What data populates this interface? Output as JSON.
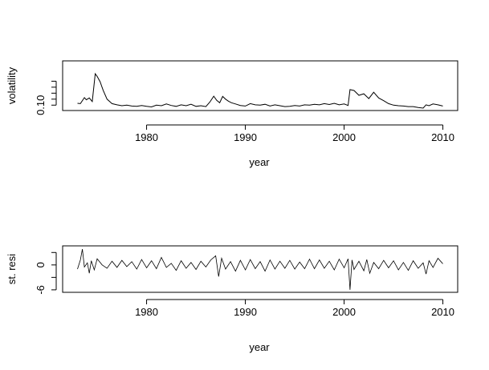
{
  "chart_data": [
    {
      "type": "line",
      "title": "",
      "xlabel": "year",
      "ylabel": "volatility",
      "xlim": [
        1971.5,
        2011.5
      ],
      "ylim": [
        0.082,
        0.248
      ],
      "x_ticks": [
        1980,
        1990,
        2000,
        2010
      ],
      "y_ticks": [
        0.1,
        0.12,
        0.14,
        0.16,
        0.18
      ],
      "y_tick_labels": [
        "0.10",
        "",
        "",
        "",
        ""
      ],
      "grid": false,
      "legend": "none",
      "line_color": "#000000",
      "series": [
        {
          "x": [
            1973.0,
            1973.3,
            1973.7,
            1973.9,
            1974.2,
            1974.5,
            1974.8,
            1975.0,
            1975.3,
            1975.6,
            1976.0,
            1976.5,
            1977.0,
            1977.5,
            1978.0,
            1978.5,
            1979.0,
            1979.5,
            1980.0,
            1980.5,
            1981.0,
            1981.5,
            1982.0,
            1982.5,
            1983.0,
            1983.5,
            1984.0,
            1984.5,
            1985.0,
            1985.5,
            1986.0,
            1986.4,
            1986.8,
            1987.1,
            1987.4,
            1987.7,
            1988.0,
            1988.3,
            1988.6,
            1989.0,
            1989.5,
            1990.0,
            1990.5,
            1991.0,
            1991.5,
            1992.0,
            1992.5,
            1993.0,
            1993.5,
            1994.0,
            1994.5,
            1995.0,
            1995.5,
            1996.0,
            1996.5,
            1997.0,
            1997.5,
            1998.0,
            1998.5,
            1999.0,
            1999.5,
            2000.0,
            2000.4,
            2000.6,
            2001.0,
            2001.5,
            2002.0,
            2002.5,
            2003.0,
            2003.5,
            2004.0,
            2004.5,
            2005.0,
            2005.5,
            2006.0,
            2006.5,
            2007.0,
            2007.5,
            2008.0,
            2008.3,
            2008.6,
            2009.0,
            2009.5,
            2010.0
          ],
          "y": [
            0.106,
            0.105,
            0.125,
            0.118,
            0.124,
            0.112,
            0.205,
            0.196,
            0.178,
            0.15,
            0.12,
            0.105,
            0.101,
            0.098,
            0.1,
            0.097,
            0.096,
            0.099,
            0.096,
            0.094,
            0.1,
            0.098,
            0.104,
            0.099,
            0.096,
            0.101,
            0.098,
            0.103,
            0.096,
            0.098,
            0.095,
            0.11,
            0.13,
            0.116,
            0.108,
            0.129,
            0.12,
            0.113,
            0.108,
            0.104,
            0.099,
            0.097,
            0.105,
            0.101,
            0.1,
            0.103,
            0.097,
            0.101,
            0.098,
            0.095,
            0.096,
            0.099,
            0.097,
            0.101,
            0.1,
            0.103,
            0.101,
            0.105,
            0.102,
            0.106,
            0.101,
            0.104,
            0.099,
            0.152,
            0.149,
            0.133,
            0.138,
            0.122,
            0.143,
            0.124,
            0.115,
            0.105,
            0.1,
            0.098,
            0.097,
            0.095,
            0.095,
            0.092,
            0.09,
            0.101,
            0.098,
            0.104,
            0.101,
            0.097
          ]
        }
      ]
    },
    {
      "type": "line",
      "title": "",
      "xlabel": "year",
      "ylabel": "st. resi",
      "xlim": [
        1971.5,
        2011.5
      ],
      "ylim": [
        -6.6,
        4.6
      ],
      "x_ticks": [
        1980,
        1990,
        2000,
        2010
      ],
      "y_ticks": [
        -6,
        -3,
        0,
        3
      ],
      "y_tick_labels": [
        "-6",
        "",
        "0",
        ""
      ],
      "grid": false,
      "legend": "none",
      "line_color": "#000000",
      "series": [
        {
          "x": [
            1973.0,
            1973.3,
            1973.5,
            1973.7,
            1974.0,
            1974.2,
            1974.4,
            1974.7,
            1975.0,
            1975.5,
            1976.0,
            1976.5,
            1977.0,
            1977.5,
            1978.0,
            1978.5,
            1979.0,
            1979.5,
            1980.0,
            1980.5,
            1981.0,
            1981.5,
            1982.0,
            1982.5,
            1983.0,
            1983.5,
            1984.0,
            1984.5,
            1985.0,
            1985.5,
            1986.0,
            1986.5,
            1987.0,
            1987.3,
            1987.6,
            1988.0,
            1988.5,
            1989.0,
            1989.5,
            1990.0,
            1990.5,
            1991.0,
            1991.5,
            1992.0,
            1992.5,
            1993.0,
            1993.5,
            1994.0,
            1994.5,
            1995.0,
            1995.5,
            1996.0,
            1996.5,
            1997.0,
            1997.5,
            1998.0,
            1998.5,
            1999.0,
            1999.5,
            2000.0,
            2000.4,
            2000.6,
            2000.8,
            2001.0,
            2001.5,
            2002.0,
            2002.3,
            2002.6,
            2003.0,
            2003.5,
            2004.0,
            2004.5,
            2005.0,
            2005.5,
            2006.0,
            2006.5,
            2007.0,
            2007.5,
            2008.0,
            2008.3,
            2008.6,
            2009.0,
            2009.5,
            2010.0
          ],
          "y": [
            -1.0,
            1.2,
            3.8,
            -0.5,
            0.5,
            -2.0,
            1.0,
            -1.2,
            1.5,
            0.0,
            -0.8,
            0.9,
            -0.6,
            1.1,
            -0.4,
            0.8,
            -1.0,
            1.3,
            -0.7,
            1.0,
            -0.9,
            1.8,
            -0.6,
            0.4,
            -1.3,
            1.0,
            -0.8,
            0.6,
            -1.1,
            0.9,
            -0.5,
            1.2,
            2.2,
            -2.8,
            1.6,
            -1.0,
            0.8,
            -1.5,
            1.1,
            -1.2,
            1.3,
            -0.9,
            0.8,
            -1.5,
            1.2,
            -1.0,
            0.9,
            -0.8,
            1.1,
            -1.0,
            0.7,
            -0.9,
            1.4,
            -0.9,
            1.2,
            -0.8,
            0.9,
            -1.2,
            1.4,
            -0.7,
            1.5,
            -6.0,
            1.2,
            -1.1,
            0.9,
            -1.4,
            1.3,
            -2.0,
            0.6,
            -0.9,
            1.1,
            -0.7,
            1.0,
            -1.2,
            0.6,
            -1.3,
            1.0,
            -0.8,
            0.5,
            -2.2,
            1.0,
            -0.6,
            1.6,
            0.3
          ]
        }
      ]
    }
  ]
}
